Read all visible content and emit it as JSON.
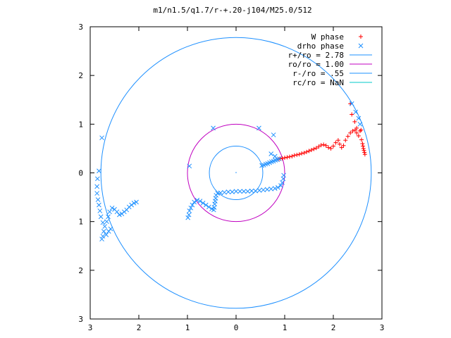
{
  "chart_data": {
    "type": "scatter",
    "title": "m1/n1.5/q1.7/r-+.20-j104/M25.0/512",
    "xlim": [
      -3,
      3
    ],
    "ylim": [
      -3,
      3
    ],
    "xticks": [
      -3,
      -2,
      -1,
      0,
      1,
      2,
      3
    ],
    "yticks": [
      -3,
      -2,
      -1,
      0,
      1,
      2,
      3
    ],
    "xtick_labels": [
      "3",
      "2",
      "1",
      "0",
      "1",
      "2",
      "3"
    ],
    "ytick_labels": [
      "3",
      "2",
      "1",
      "0",
      "1",
      "2",
      "3"
    ],
    "grid": false,
    "legend_position": "top-right",
    "series": [
      {
        "name": "W phase",
        "kind": "points",
        "marker": "plus",
        "color": "#ff0000",
        "points": [
          [
            0.87,
            0.28
          ],
          [
            0.9,
            0.29
          ],
          [
            0.95,
            0.3
          ],
          [
            1.0,
            0.31
          ],
          [
            1.05,
            0.32
          ],
          [
            1.1,
            0.33
          ],
          [
            1.15,
            0.34
          ],
          [
            1.2,
            0.36
          ],
          [
            1.25,
            0.37
          ],
          [
            1.3,
            0.38
          ],
          [
            1.35,
            0.4
          ],
          [
            1.4,
            0.41
          ],
          [
            1.45,
            0.43
          ],
          [
            1.5,
            0.45
          ],
          [
            1.55,
            0.47
          ],
          [
            1.6,
            0.49
          ],
          [
            1.65,
            0.51
          ],
          [
            1.7,
            0.54
          ],
          [
            1.75,
            0.57
          ],
          [
            1.8,
            0.58
          ],
          [
            1.85,
            0.56
          ],
          [
            1.9,
            0.52
          ],
          [
            1.95,
            0.5
          ],
          [
            2.0,
            0.55
          ],
          [
            2.05,
            0.62
          ],
          [
            2.1,
            0.67
          ],
          [
            2.13,
            0.59
          ],
          [
            2.17,
            0.52
          ],
          [
            2.21,
            0.56
          ],
          [
            2.25,
            0.67
          ],
          [
            2.3,
            0.75
          ],
          [
            2.35,
            0.82
          ],
          [
            2.4,
            0.86
          ],
          [
            2.45,
            0.88
          ],
          [
            2.48,
            0.82
          ],
          [
            2.52,
            0.76
          ],
          [
            2.55,
            0.86
          ],
          [
            2.58,
            0.68
          ],
          [
            2.6,
            0.6
          ],
          [
            2.61,
            0.55
          ],
          [
            2.62,
            0.5
          ],
          [
            2.63,
            0.46
          ],
          [
            2.64,
            0.42
          ],
          [
            2.65,
            0.38
          ],
          [
            2.57,
            0.88
          ],
          [
            2.48,
            0.92
          ],
          [
            2.44,
            1.05
          ],
          [
            2.38,
            1.2
          ],
          [
            2.35,
            1.42
          ]
        ]
      },
      {
        "name": "drho phase",
        "kind": "points",
        "marker": "cross",
        "color": "#1e90ff",
        "points": [
          [
            0.53,
            0.15
          ],
          [
            0.57,
            0.16
          ],
          [
            0.61,
            0.18
          ],
          [
            0.65,
            0.19
          ],
          [
            0.69,
            0.21
          ],
          [
            0.73,
            0.23
          ],
          [
            0.77,
            0.24
          ],
          [
            0.81,
            0.26
          ],
          [
            0.85,
            0.27
          ],
          [
            0.89,
            0.29
          ],
          [
            0.8,
            0.34
          ],
          [
            0.72,
            0.39
          ],
          [
            0.98,
            -0.05
          ],
          [
            0.97,
            -0.12
          ],
          [
            0.95,
            -0.2
          ],
          [
            0.92,
            -0.26
          ],
          [
            0.86,
            -0.3
          ],
          [
            0.8,
            -0.32
          ],
          [
            0.72,
            -0.33
          ],
          [
            0.64,
            -0.34
          ],
          [
            0.56,
            -0.35
          ],
          [
            0.48,
            -0.36
          ],
          [
            0.4,
            -0.37
          ],
          [
            0.32,
            -0.37
          ],
          [
            0.24,
            -0.38
          ],
          [
            0.16,
            -0.38
          ],
          [
            0.08,
            -0.38
          ],
          [
            0.0,
            -0.38
          ],
          [
            -0.08,
            -0.39
          ],
          [
            -0.16,
            -0.39
          ],
          [
            -0.24,
            -0.4
          ],
          [
            -0.32,
            -0.41
          ],
          [
            -0.38,
            -0.42
          ],
          [
            -0.41,
            -0.46
          ],
          [
            -0.42,
            -0.52
          ],
          [
            -0.43,
            -0.58
          ],
          [
            -0.44,
            -0.64
          ],
          [
            -0.45,
            -0.71
          ],
          [
            -0.46,
            -0.76
          ],
          [
            -0.5,
            -0.74
          ],
          [
            -0.56,
            -0.7
          ],
          [
            -0.62,
            -0.66
          ],
          [
            -0.68,
            -0.62
          ],
          [
            -0.74,
            -0.58
          ],
          [
            -0.8,
            -0.56
          ],
          [
            -0.86,
            -0.6
          ],
          [
            -0.9,
            -0.66
          ],
          [
            -0.93,
            -0.72
          ],
          [
            -0.96,
            -0.78
          ],
          [
            -0.97,
            -0.86
          ],
          [
            -0.99,
            -0.92
          ],
          [
            -2.05,
            -0.6
          ],
          [
            -2.1,
            -0.62
          ],
          [
            -2.15,
            -0.66
          ],
          [
            -2.2,
            -0.7
          ],
          [
            -2.25,
            -0.76
          ],
          [
            -2.3,
            -0.8
          ],
          [
            -2.35,
            -0.84
          ],
          [
            -2.4,
            -0.86
          ],
          [
            -2.45,
            -0.8
          ],
          [
            -2.5,
            -0.75
          ],
          [
            -2.55,
            -0.72
          ],
          [
            -2.6,
            -0.8
          ],
          [
            -2.63,
            -0.9
          ],
          [
            -2.66,
            -1.0
          ],
          [
            -2.7,
            -1.1
          ],
          [
            -2.72,
            -1.2
          ],
          [
            -2.74,
            -1.3
          ],
          [
            -2.76,
            -1.36
          ],
          [
            -2.67,
            -1.27
          ],
          [
            -2.62,
            -1.2
          ],
          [
            -2.58,
            -1.15
          ],
          [
            -2.74,
            -1.02
          ],
          [
            -2.78,
            -0.9
          ],
          [
            -2.8,
            -0.78
          ],
          [
            -2.82,
            -0.66
          ],
          [
            -2.84,
            -0.55
          ],
          [
            -2.86,
            -0.42
          ],
          [
            -2.86,
            -0.28
          ],
          [
            -2.85,
            -0.12
          ],
          [
            -2.82,
            0.04
          ],
          [
            -2.76,
            0.72
          ],
          [
            -0.96,
            0.14
          ],
          [
            -0.47,
            0.92
          ],
          [
            0.47,
            0.92
          ],
          [
            0.77,
            0.78
          ],
          [
            2.38,
            1.42
          ],
          [
            2.46,
            1.25
          ],
          [
            2.52,
            1.12
          ],
          [
            2.55,
            1.0
          ]
        ]
      },
      {
        "name": "r+/ro = 2.78",
        "kind": "circle",
        "radius": 2.78,
        "color": "#1e90ff"
      },
      {
        "name": "ro/ro = 1.00",
        "kind": "circle",
        "radius": 1.0,
        "color": "#c000c0"
      },
      {
        "name": "r-/ro = .55",
        "kind": "circle",
        "radius": 0.55,
        "color": "#1e90ff"
      },
      {
        "name": "rc/ro = NaN",
        "kind": "circle",
        "radius": null,
        "color": "#00c8c8"
      }
    ]
  }
}
